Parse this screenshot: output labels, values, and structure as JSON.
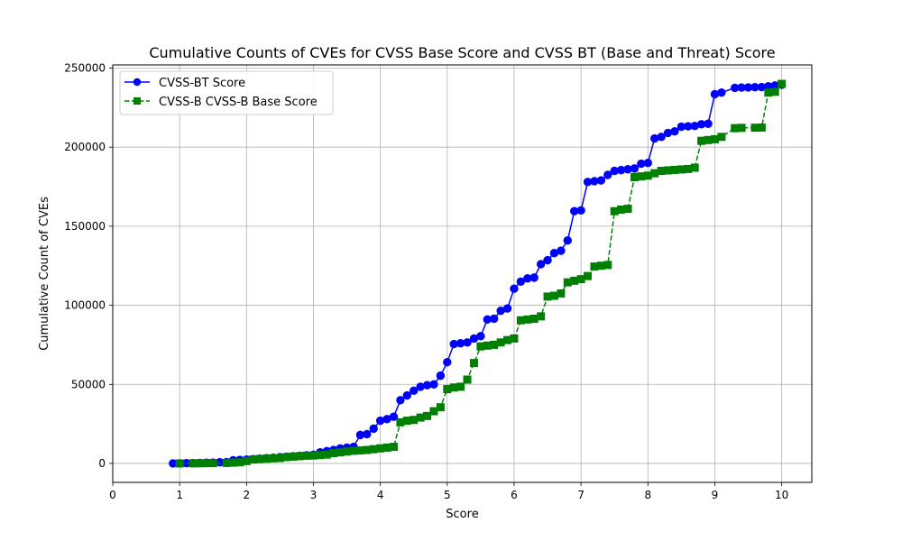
{
  "chart_data": {
    "type": "line",
    "title": "Cumulative Counts of CVEs for CVSS Base Score and CVSS BT (Base and Threat) Score",
    "xlabel": "Score",
    "ylabel": "Cumulative Count of CVEs",
    "xlim": [
      0,
      10.45
    ],
    "ylim": [
      -12000,
      252000
    ],
    "xticks": [
      "0",
      "1",
      "2",
      "3",
      "4",
      "5",
      "6",
      "7",
      "8",
      "9",
      "10"
    ],
    "yticks": [
      "0",
      "50000",
      "100000",
      "150000",
      "200000",
      "250000"
    ],
    "grid": true,
    "legend_position": "top-left",
    "series": [
      {
        "name": "CVSS-BT Score",
        "color": "#0000ff",
        "marker": "circle",
        "linestyle": "solid",
        "points": [
          [
            0.9,
            0
          ],
          [
            1.0,
            100
          ],
          [
            1.1,
            150
          ],
          [
            1.2,
            200
          ],
          [
            1.3,
            300
          ],
          [
            1.4,
            400
          ],
          [
            1.5,
            500
          ],
          [
            1.6,
            700
          ],
          [
            1.7,
            800
          ],
          [
            1.8,
            2000
          ],
          [
            1.9,
            2200
          ],
          [
            2.0,
            2400
          ],
          [
            2.1,
            2700
          ],
          [
            2.2,
            3000
          ],
          [
            2.3,
            3300
          ],
          [
            2.4,
            3600
          ],
          [
            2.5,
            3900
          ],
          [
            2.6,
            4200
          ],
          [
            2.7,
            4500
          ],
          [
            2.8,
            4800
          ],
          [
            2.9,
            5100
          ],
          [
            3.0,
            5500
          ],
          [
            3.1,
            7000
          ],
          [
            3.2,
            7800
          ],
          [
            3.3,
            8500
          ],
          [
            3.4,
            9500
          ],
          [
            3.5,
            10000
          ],
          [
            3.6,
            10500
          ],
          [
            3.7,
            18000
          ],
          [
            3.8,
            18500
          ],
          [
            3.9,
            22000
          ],
          [
            4.0,
            27000
          ],
          [
            4.1,
            28000
          ],
          [
            4.2,
            29500
          ],
          [
            4.3,
            40000
          ],
          [
            4.4,
            43000
          ],
          [
            4.5,
            46000
          ],
          [
            4.6,
            48500
          ],
          [
            4.7,
            49500
          ],
          [
            4.8,
            50000
          ],
          [
            4.9,
            55500
          ],
          [
            5.0,
            64000
          ],
          [
            5.1,
            75500
          ],
          [
            5.2,
            76000
          ],
          [
            5.3,
            76500
          ],
          [
            5.4,
            79000
          ],
          [
            5.5,
            80500
          ],
          [
            5.6,
            91000
          ],
          [
            5.7,
            91500
          ],
          [
            5.8,
            96500
          ],
          [
            5.9,
            98000
          ],
          [
            6.0,
            110500
          ],
          [
            6.1,
            115000
          ],
          [
            6.2,
            117000
          ],
          [
            6.3,
            117500
          ],
          [
            6.4,
            126000
          ],
          [
            6.5,
            128500
          ],
          [
            6.6,
            133000
          ],
          [
            6.7,
            134500
          ],
          [
            6.8,
            141000
          ],
          [
            6.9,
            159500
          ],
          [
            7.0,
            160000
          ],
          [
            7.1,
            178000
          ],
          [
            7.2,
            178500
          ],
          [
            7.3,
            179000
          ],
          [
            7.4,
            182500
          ],
          [
            7.5,
            185000
          ],
          [
            7.6,
            185500
          ],
          [
            7.7,
            186000
          ],
          [
            7.8,
            186500
          ],
          [
            7.9,
            189500
          ],
          [
            8.0,
            190000
          ],
          [
            8.1,
            205500
          ],
          [
            8.2,
            206500
          ],
          [
            8.3,
            209000
          ],
          [
            8.4,
            210000
          ],
          [
            8.5,
            213000
          ],
          [
            8.6,
            213200
          ],
          [
            8.7,
            213400
          ],
          [
            8.8,
            214500
          ],
          [
            8.9,
            214800
          ],
          [
            9.0,
            233500
          ],
          [
            9.1,
            234500
          ],
          [
            9.3,
            237500
          ],
          [
            9.4,
            237700
          ],
          [
            9.5,
            237800
          ],
          [
            9.6,
            237900
          ],
          [
            9.7,
            238000
          ],
          [
            9.8,
            238500
          ],
          [
            9.9,
            239000
          ],
          [
            10.0,
            239500
          ]
        ]
      },
      {
        "name": "CVSS-B CVSS-B Base Score",
        "color": "#008000",
        "marker": "square",
        "linestyle": "dashed",
        "points": [
          [
            1.0,
            0
          ],
          [
            1.2,
            50
          ],
          [
            1.3,
            100
          ],
          [
            1.4,
            150
          ],
          [
            1.5,
            200
          ],
          [
            1.7,
            300
          ],
          [
            1.8,
            500
          ],
          [
            1.9,
            700
          ],
          [
            2.0,
            1500
          ],
          [
            2.1,
            2500
          ],
          [
            2.2,
            2800
          ],
          [
            2.3,
            3000
          ],
          [
            2.4,
            3200
          ],
          [
            2.5,
            3400
          ],
          [
            2.6,
            4000
          ],
          [
            2.7,
            4300
          ],
          [
            2.8,
            4600
          ],
          [
            2.9,
            4900
          ],
          [
            3.0,
            5000
          ],
          [
            3.1,
            5300
          ],
          [
            3.2,
            5600
          ],
          [
            3.3,
            6500
          ],
          [
            3.4,
            7000
          ],
          [
            3.5,
            7500
          ],
          [
            3.6,
            8000
          ],
          [
            3.7,
            8200
          ],
          [
            3.8,
            8500
          ],
          [
            3.9,
            9000
          ],
          [
            4.0,
            9500
          ],
          [
            4.1,
            10000
          ],
          [
            4.2,
            10500
          ],
          [
            4.3,
            26000
          ],
          [
            4.4,
            27000
          ],
          [
            4.5,
            27500
          ],
          [
            4.6,
            29000
          ],
          [
            4.7,
            30000
          ],
          [
            4.8,
            33000
          ],
          [
            4.9,
            35500
          ],
          [
            5.0,
            47000
          ],
          [
            5.1,
            48000
          ],
          [
            5.2,
            48500
          ],
          [
            5.3,
            53000
          ],
          [
            5.4,
            63500
          ],
          [
            5.5,
            74000
          ],
          [
            5.6,
            74500
          ],
          [
            5.7,
            75000
          ],
          [
            5.8,
            76500
          ],
          [
            5.9,
            78000
          ],
          [
            6.0,
            79000
          ],
          [
            6.1,
            90500
          ],
          [
            6.2,
            91000
          ],
          [
            6.3,
            91500
          ],
          [
            6.4,
            93000
          ],
          [
            6.5,
            105500
          ],
          [
            6.6,
            106000
          ],
          [
            6.7,
            107500
          ],
          [
            6.8,
            114500
          ],
          [
            6.9,
            115500
          ],
          [
            7.0,
            116500
          ],
          [
            7.1,
            118500
          ],
          [
            7.2,
            124500
          ],
          [
            7.3,
            125000
          ],
          [
            7.4,
            125500
          ],
          [
            7.5,
            159500
          ],
          [
            7.6,
            160500
          ],
          [
            7.7,
            161000
          ],
          [
            7.8,
            181000
          ],
          [
            7.9,
            181500
          ],
          [
            8.0,
            182000
          ],
          [
            8.1,
            183500
          ],
          [
            8.2,
            185000
          ],
          [
            8.3,
            185300
          ],
          [
            8.4,
            185600
          ],
          [
            8.5,
            185900
          ],
          [
            8.6,
            186200
          ],
          [
            8.7,
            187000
          ],
          [
            8.8,
            204000
          ],
          [
            8.9,
            204500
          ],
          [
            9.0,
            205000
          ],
          [
            9.1,
            206500
          ],
          [
            9.3,
            212000
          ],
          [
            9.4,
            212200
          ],
          [
            9.6,
            212300
          ],
          [
            9.7,
            212400
          ],
          [
            9.8,
            234500
          ],
          [
            9.9,
            235000
          ],
          [
            10.0,
            240000
          ]
        ]
      }
    ]
  }
}
